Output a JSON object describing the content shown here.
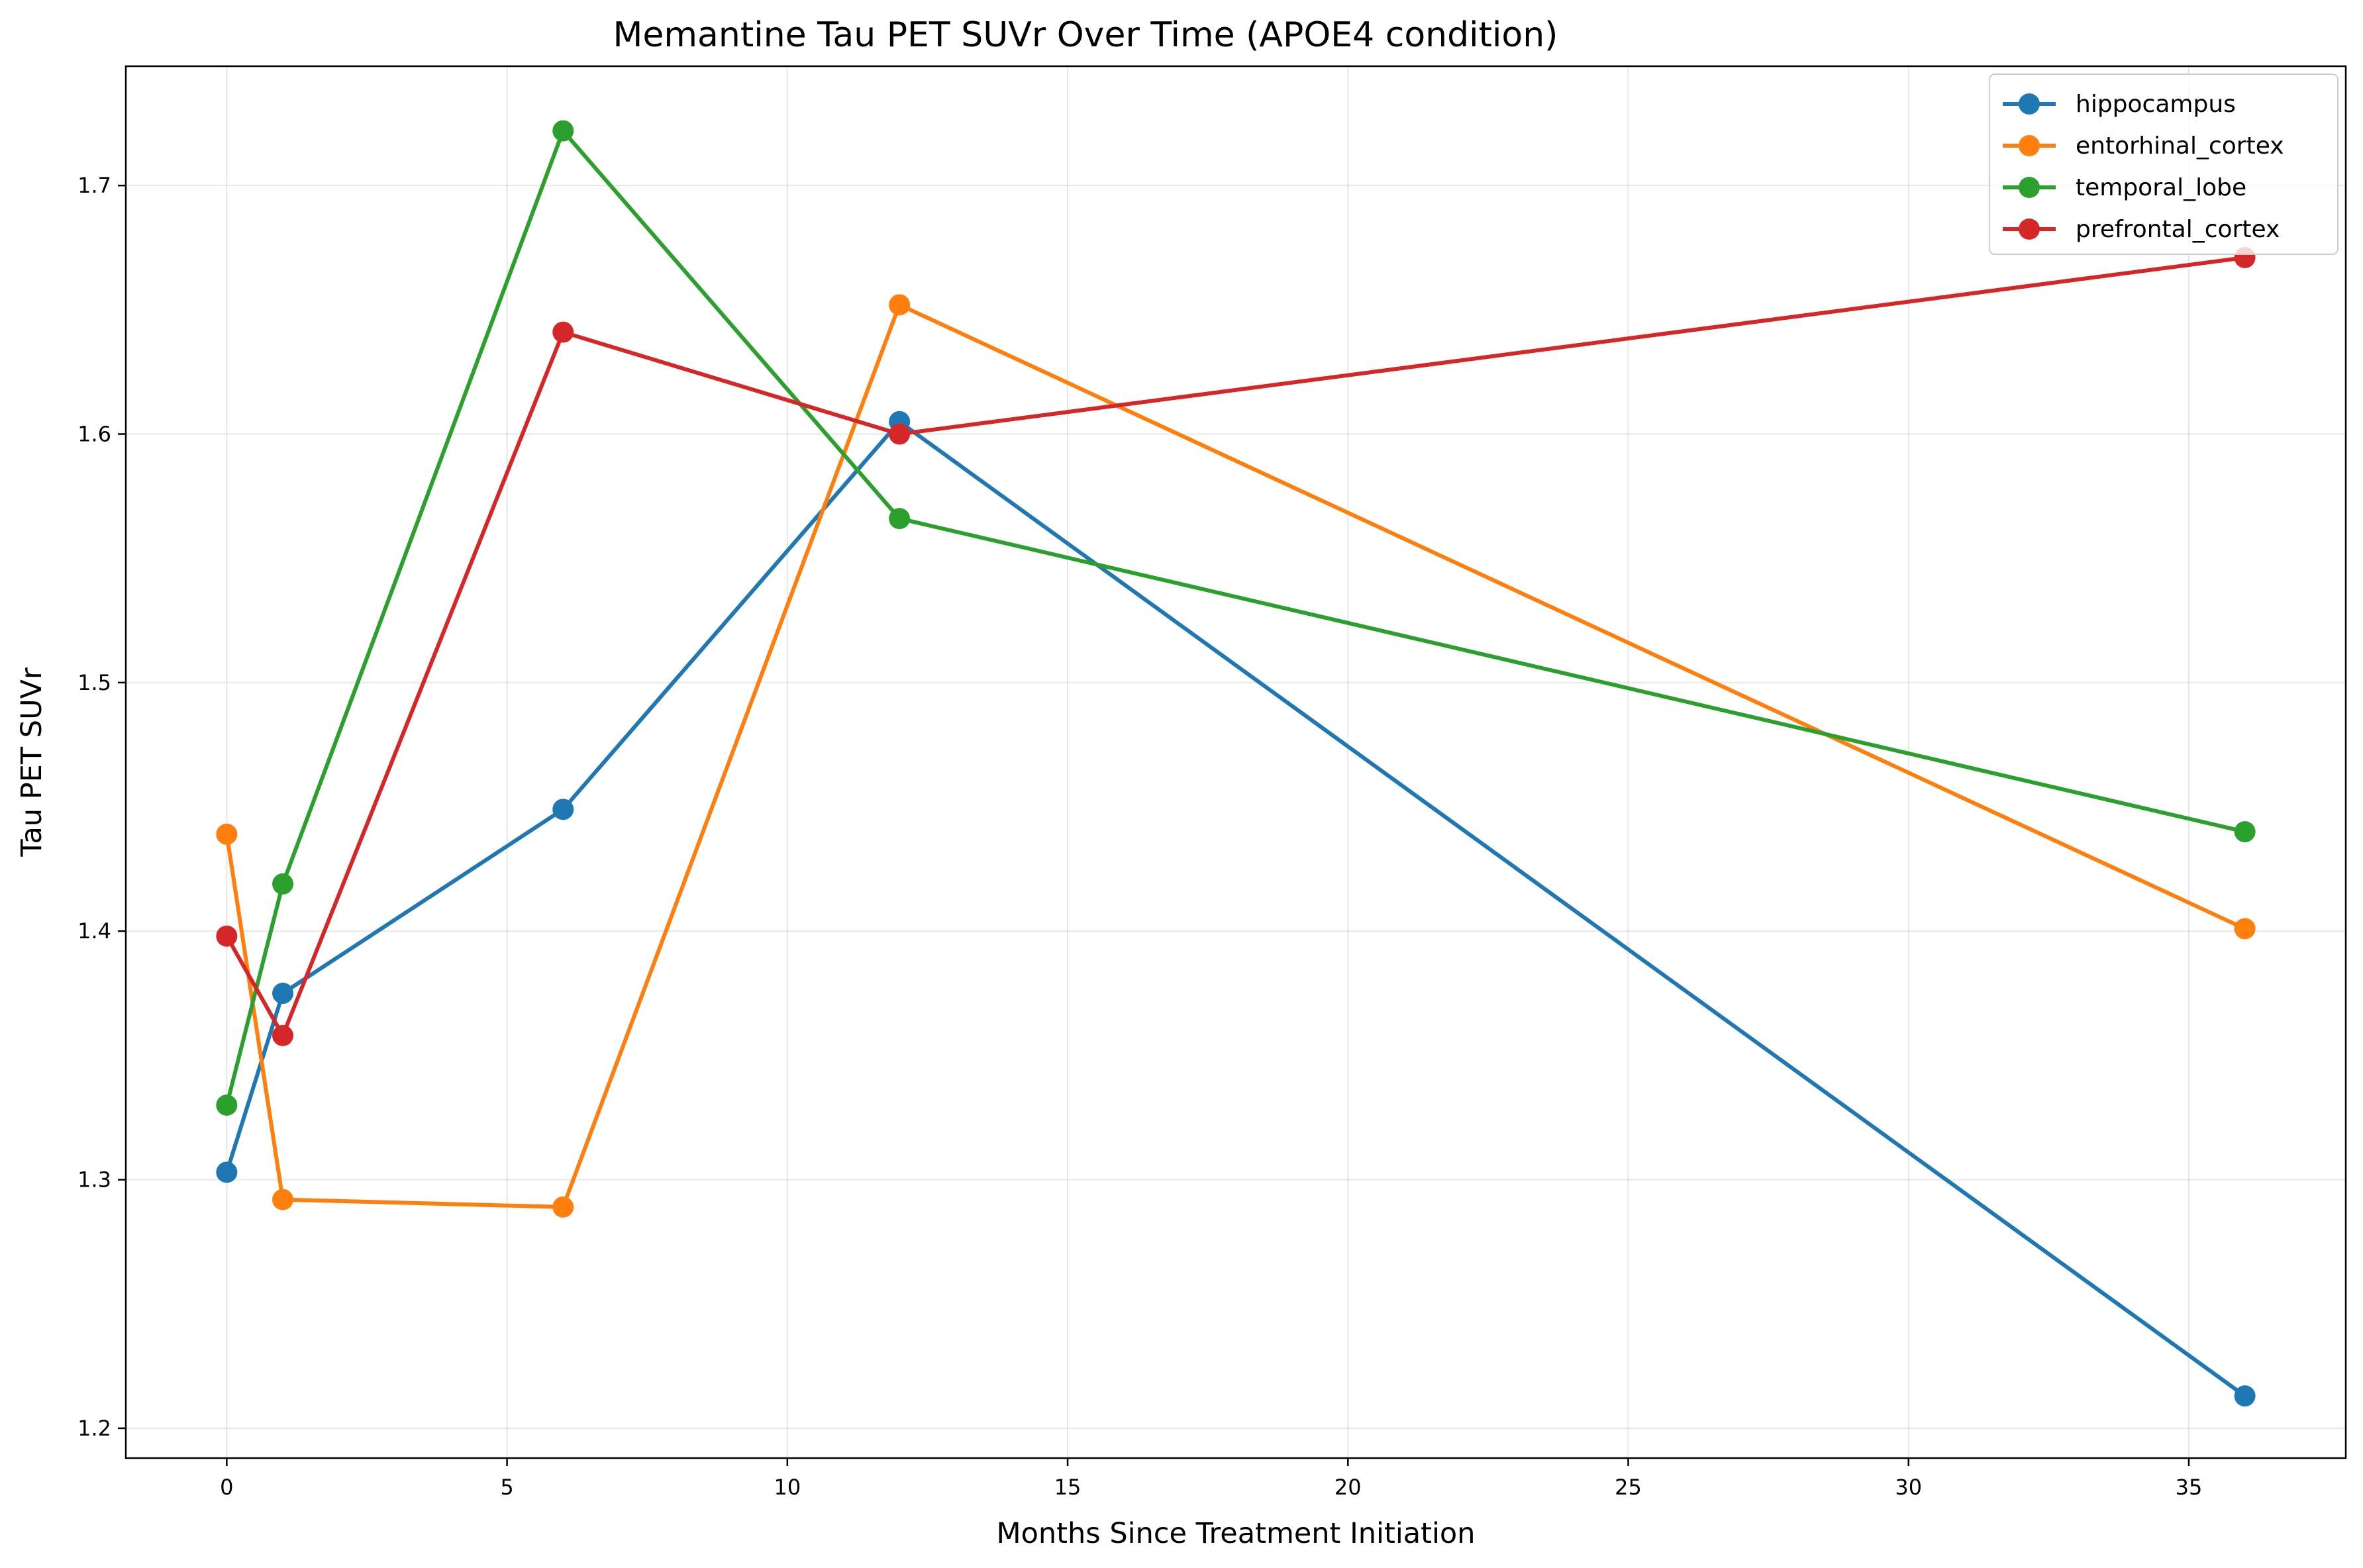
{
  "chart_data": {
    "type": "line",
    "title": "Memantine Tau PET SUVr Over Time (APOE4 condition)",
    "xlabel": "Months Since Treatment Initiation",
    "ylabel": "Tau PET SUVr",
    "xlim": [
      -1.8,
      37.8
    ],
    "ylim": [
      1.188,
      1.748
    ],
    "xticks": [
      0,
      5,
      10,
      15,
      20,
      25,
      30,
      35
    ],
    "yticks": [
      1.2,
      1.3,
      1.4,
      1.5,
      1.6,
      1.7
    ],
    "xtick_labels": [
      "0",
      "5",
      "10",
      "15",
      "20",
      "25",
      "30",
      "35"
    ],
    "ytick_labels": [
      "1.2",
      "1.3",
      "1.4",
      "1.5",
      "1.6",
      "1.7"
    ],
    "grid": true,
    "legend_position": "top-right",
    "x": [
      0,
      1,
      6,
      12,
      36
    ],
    "series": [
      {
        "name": "hippocampus",
        "color": "#1f77b4",
        "values": [
          1.303,
          1.375,
          1.449,
          1.605,
          1.213
        ]
      },
      {
        "name": "entorhinal_cortex",
        "color": "#ff7f0e",
        "values": [
          1.439,
          1.292,
          1.289,
          1.652,
          1.401
        ]
      },
      {
        "name": "temporal_lobe",
        "color": "#2ca02c",
        "values": [
          1.33,
          1.419,
          1.722,
          1.566,
          1.44
        ]
      },
      {
        "name": "prefrontal_cortex",
        "color": "#d62728",
        "values": [
          1.398,
          1.358,
          1.641,
          1.6,
          1.671
        ]
      }
    ]
  }
}
